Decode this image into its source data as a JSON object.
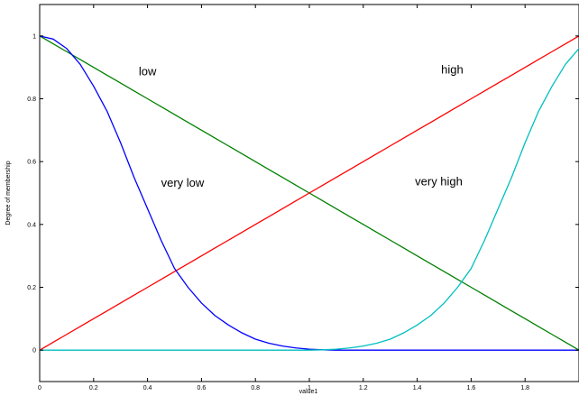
{
  "chart_data": {
    "type": "line",
    "xlabel": "value1",
    "ylabel": "Degree of membership",
    "xlim": [
      0,
      2
    ],
    "ylim": [
      -0.1,
      1.1
    ],
    "x_ticks": [
      "0",
      "0.2",
      "0.4",
      "0.6",
      "0.8",
      "1",
      "1.2",
      "1.4",
      "1.6",
      "1.8"
    ],
    "y_ticks": [
      "0",
      "0.2",
      "0.4",
      "0.6",
      "0.8",
      "1"
    ],
    "grid": false,
    "legend": "none",
    "x": [
      0,
      0.05,
      0.1,
      0.15,
      0.2,
      0.25,
      0.3,
      0.35,
      0.4,
      0.45,
      0.5,
      0.55,
      0.6,
      0.65,
      0.7,
      0.75,
      0.8,
      0.85,
      0.9,
      0.95,
      1.0,
      1.05,
      1.1,
      1.15,
      1.2,
      1.25,
      1.3,
      1.35,
      1.4,
      1.45,
      1.5,
      1.55,
      1.6,
      1.65,
      1.7,
      1.75,
      1.8,
      1.85,
      1.9,
      1.95,
      2.0
    ],
    "series": [
      {
        "color": "#008000",
        "values": [
          1.0,
          0.975,
          0.95,
          0.925,
          0.9,
          0.875,
          0.85,
          0.825,
          0.8,
          0.775,
          0.75,
          0.725,
          0.7,
          0.675,
          0.65,
          0.625,
          0.6,
          0.575,
          0.55,
          0.525,
          0.5,
          0.475,
          0.45,
          0.425,
          0.4,
          0.375,
          0.35,
          0.325,
          0.3,
          0.275,
          0.25,
          0.225,
          0.2,
          0.175,
          0.15,
          0.125,
          0.1,
          0.075,
          0.05,
          0.025,
          0.0
        ]
      },
      {
        "color": "#ff0000",
        "values": [
          0.0,
          0.025,
          0.05,
          0.075,
          0.1,
          0.125,
          0.15,
          0.175,
          0.2,
          0.225,
          0.25,
          0.275,
          0.3,
          0.325,
          0.35,
          0.375,
          0.4,
          0.425,
          0.45,
          0.475,
          0.5,
          0.525,
          0.55,
          0.575,
          0.6,
          0.625,
          0.65,
          0.675,
          0.7,
          0.725,
          0.75,
          0.775,
          0.8,
          0.825,
          0.85,
          0.875,
          0.9,
          0.925,
          0.95,
          0.975,
          1.0
        ]
      },
      {
        "color": "#0000ff",
        "values": [
          1.0,
          0.99,
          0.96,
          0.91,
          0.84,
          0.76,
          0.66,
          0.55,
          0.45,
          0.35,
          0.26,
          0.2,
          0.15,
          0.11,
          0.08,
          0.055,
          0.035,
          0.022,
          0.013,
          0.007,
          0.003,
          0.001,
          0.0,
          0.0,
          0.0,
          0.0,
          0.0,
          0.0,
          0.0,
          0.0,
          0.0,
          0.0,
          0.0,
          0.0,
          0.0,
          0.0,
          0.0,
          0.0,
          0.0,
          0.0,
          0.0
        ]
      },
      {
        "color": "#00bfbf",
        "values": [
          0.0,
          0.0,
          0.0,
          0.0,
          0.0,
          0.0,
          0.0,
          0.0,
          0.0,
          0.0,
          0.0,
          0.0,
          0.0,
          0.0,
          0.0,
          0.0,
          0.0,
          0.0,
          0.0,
          0.0,
          0.0,
          0.001,
          0.003,
          0.007,
          0.013,
          0.022,
          0.035,
          0.055,
          0.08,
          0.11,
          0.15,
          0.2,
          0.26,
          0.35,
          0.45,
          0.55,
          0.66,
          0.76,
          0.84,
          0.91,
          0.96
        ]
      }
    ],
    "annotations": [
      {
        "text": "low",
        "x": 0.4,
        "y": 0.875
      },
      {
        "text": "high",
        "x": 1.53,
        "y": 0.88
      },
      {
        "text": "very low",
        "x": 0.53,
        "y": 0.52
      },
      {
        "text": "very high",
        "x": 1.48,
        "y": 0.525
      }
    ]
  }
}
